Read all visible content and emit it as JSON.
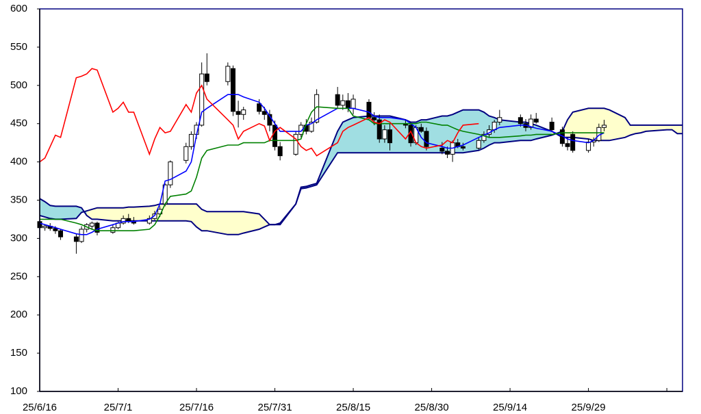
{
  "chart_data": {
    "type": "candlestick",
    "x": [
      "25/6/16",
      "25/6/17",
      "25/6/18",
      "25/6/19",
      "25/6/20",
      "25/6/23",
      "25/6/24",
      "25/6/25",
      "25/6/26",
      "25/6/27",
      "25/6/30",
      "25/7/1",
      "25/7/2",
      "25/7/3",
      "25/7/4",
      "25/7/7",
      "25/7/8",
      "25/7/9",
      "25/7/10",
      "25/7/11",
      "25/7/14",
      "25/7/15",
      "25/7/16",
      "25/7/17",
      "25/7/18",
      "25/7/22",
      "25/7/23",
      "25/7/24",
      "25/7/25",
      "25/7/28",
      "25/7/29",
      "25/7/30",
      "25/7/31",
      "25/8/1",
      "25/8/4",
      "25/8/5",
      "25/8/6",
      "25/8/7",
      "25/8/8",
      "25/8/12",
      "25/8/13",
      "25/8/14",
      "25/8/15",
      "25/8/18",
      "25/8/19",
      "25/8/20",
      "25/8/21",
      "25/8/22",
      "25/8/25",
      "25/8/26",
      "25/8/27",
      "25/8/28",
      "25/8/29",
      "25/9/1",
      "25/9/2",
      "25/9/3",
      "25/9/4",
      "25/9/5",
      "25/9/8",
      "25/9/9",
      "25/9/10",
      "25/9/11",
      "25/9/12",
      "25/9/16",
      "25/9/17",
      "25/9/18",
      "25/9/19",
      "25/9/22",
      "25/9/24",
      "25/9/25",
      "25/9/26",
      "25/9/29",
      "25/9/30",
      "25/10/1",
      "25/10/2",
      "25/10/3",
      "25/10/6",
      "25/10/7",
      "25/10/8",
      "25/10/9",
      "25/10/10",
      "25/10/14",
      "25/10/15",
      "25/10/16",
      "25/10/17"
    ],
    "open": [
      322,
      314,
      316,
      313,
      310,
      302,
      296,
      312,
      316,
      320,
      308,
      314,
      320,
      326,
      322,
      320,
      326,
      332,
      345,
      370,
      402,
      420,
      436,
      448,
      515,
      505,
      522,
      466,
      462,
      476,
      466,
      462,
      448,
      420,
      410,
      436,
      448,
      440,
      452,
      488,
      474,
      480,
      470,
      478,
      458,
      455,
      430,
      442,
      450,
      448,
      425,
      445,
      440,
      418,
      414,
      410,
      425,
      420,
      418,
      428,
      436,
      442,
      452,
      458,
      450,
      445,
      456,
      452,
      442,
      424,
      436,
      415,
      426,
      428,
      445,
      null,
      null,
      null,
      null,
      null,
      null,
      null,
      null,
      null,
      null
    ],
    "high": [
      326,
      318,
      320,
      316,
      312,
      306,
      316,
      320,
      322,
      322,
      318,
      322,
      330,
      332,
      328,
      330,
      336,
      342,
      372,
      402,
      425,
      440,
      452,
      530,
      542,
      530,
      526,
      480,
      472,
      482,
      472,
      468,
      454,
      426,
      440,
      452,
      456,
      458,
      495,
      498,
      488,
      490,
      488,
      482,
      465,
      462,
      448,
      450,
      456,
      452,
      448,
      450,
      445,
      426,
      420,
      428,
      430,
      425,
      432,
      440,
      448,
      455,
      468,
      462,
      456,
      462,
      464,
      458,
      446,
      432,
      440,
      430,
      432,
      450,
      455,
      null,
      null,
      null,
      null,
      null,
      null,
      null,
      null,
      null,
      null
    ],
    "low": [
      312,
      310,
      310,
      306,
      298,
      280,
      294,
      308,
      312,
      304,
      306,
      312,
      318,
      320,
      318,
      318,
      324,
      328,
      342,
      366,
      398,
      416,
      430,
      446,
      500,
      500,
      460,
      445,
      455,
      462,
      455,
      440,
      415,
      402,
      408,
      432,
      436,
      438,
      450,
      470,
      468,
      465,
      462,
      455,
      448,
      425,
      425,
      415,
      444,
      420,
      422,
      438,
      415,
      410,
      405,
      400,
      418,
      415,
      416,
      425,
      432,
      438,
      448,
      446,
      440,
      442,
      450,
      440,
      420,
      415,
      412,
      412,
      420,
      426,
      440,
      null,
      null,
      null,
      null,
      null,
      null,
      null,
      null,
      null,
      null
    ],
    "close": [
      314,
      316,
      313,
      310,
      302,
      296,
      312,
      318,
      320,
      308,
      314,
      320,
      326,
      322,
      320,
      326,
      332,
      338,
      370,
      400,
      420,
      436,
      448,
      515,
      505,
      525,
      466,
      462,
      468,
      466,
      462,
      448,
      420,
      408,
      436,
      448,
      440,
      452,
      488,
      474,
      480,
      470,
      482,
      458,
      455,
      430,
      442,
      425,
      448,
      425,
      445,
      440,
      420,
      414,
      410,
      425,
      420,
      418,
      428,
      436,
      442,
      452,
      458,
      450,
      445,
      456,
      452,
      442,
      424,
      420,
      415,
      426,
      428,
      445,
      448,
      null,
      null,
      null,
      null,
      null,
      null,
      null,
      null,
      null,
      null
    ],
    "candle_colors": {
      "up": "#ffffff",
      "down": "#000000",
      "outline": "#000000"
    },
    "series": [
      {
        "color": "#0000ff",
        "values": [
          320,
          318,
          316,
          314,
          312,
          306,
          305,
          305,
          308,
          312,
          318,
          320,
          322,
          322,
          322,
          325,
          330,
          345,
          375,
          377,
          388,
          400,
          435,
          465,
          470,
          488,
          488,
          488,
          485,
          478,
          470,
          460,
          450,
          440,
          440,
          440,
          448,
          450,
          455,
          470,
          470,
          470,
          470,
          465,
          460,
          458,
          458,
          458,
          455,
          450,
          445,
          432,
          425,
          420,
          418,
          418,
          420,
          422,
          432,
          435,
          438,
          442,
          445,
          448,
          448,
          446,
          444,
          440,
          434,
          430,
          428,
          425,
          428,
          435,
          438,
          null,
          null,
          null,
          null,
          null,
          null,
          null,
          null,
          null,
          null
        ]
      },
      {
        "color": "#008000",
        "values": [
          325,
          325,
          325,
          325,
          325,
          320,
          318,
          315,
          312,
          310,
          310,
          310,
          310,
          310,
          310,
          312,
          318,
          330,
          345,
          355,
          358,
          362,
          380,
          405,
          415,
          422,
          422,
          422,
          425,
          425,
          425,
          428,
          428,
          428,
          428,
          430,
          450,
          465,
          472,
          470,
          470,
          470,
          460,
          455,
          450,
          450,
          450,
          450,
          450,
          450,
          450,
          452,
          452,
          448,
          448,
          445,
          442,
          440,
          436,
          434,
          432,
          432,
          432,
          434,
          435,
          435,
          436,
          436,
          438,
          438,
          438,
          438,
          438,
          438,
          438,
          null,
          null,
          null,
          null,
          null,
          null,
          null,
          null,
          null,
          null
        ]
      },
      {
        "color": "#ff0000",
        "values": [
          400,
          405,
          420,
          435,
          432,
          510,
          512,
          515,
          522,
          520,
          465,
          470,
          478,
          465,
          465,
          410,
          430,
          445,
          438,
          440,
          475,
          465,
          490,
          500,
          482,
          455,
          448,
          430,
          440,
          450,
          447,
          428,
          440,
          445,
          430,
          420,
          415,
          418,
          408,
          425,
          440,
          445,
          448,
          458,
          452,
          450,
          455,
          452,
          430,
          440,
          425,
          420,
          418,
          422,
          428,
          425,
          438,
          448,
          450,
          null,
          null,
          null,
          null,
          null,
          null,
          null,
          null,
          null,
          null,
          null,
          null,
          null,
          null,
          null,
          null,
          null,
          null,
          null,
          null,
          null,
          null,
          null,
          null,
          null,
          null
        ]
      },
      {
        "color": "#000080",
        "values": [
          352,
          348,
          343,
          342,
          342,
          342,
          340,
          330,
          325,
          325,
          323,
          323,
          323,
          323,
          323,
          323,
          323,
          323,
          323,
          323,
          323,
          322,
          315,
          310,
          310,
          305,
          305,
          305,
          307,
          312,
          315,
          318,
          318,
          318,
          345,
          367,
          368,
          370,
          372,
          440,
          452,
          455,
          458,
          460,
          460,
          460,
          460,
          460,
          455,
          452,
          452,
          455,
          455,
          460,
          460,
          462,
          465,
          468,
          468,
          465,
          460,
          458,
          455,
          452,
          452,
          450,
          448,
          440,
          432,
          432,
          432,
          430,
          428,
          428,
          428,
          428,
          432,
          435,
          437,
          438,
          440,
          442,
          442,
          437,
          437
        ]
      },
      {
        "color": "#000080",
        "values": [
          330,
          328,
          326,
          325,
          325,
          326,
          334,
          336,
          338,
          340,
          340,
          340,
          340,
          341,
          341,
          342,
          343,
          345,
          345,
          345,
          345,
          345,
          345,
          338,
          335,
          335,
          335,
          335,
          335,
          332,
          325,
          318,
          318,
          320,
          345,
          365,
          366,
          368,
          370,
          412,
          412,
          412,
          412,
          412,
          412,
          412,
          412,
          412,
          412,
          412,
          412,
          412,
          412,
          412,
          412,
          412,
          412,
          412,
          415,
          418,
          422,
          425,
          425,
          428,
          428,
          428,
          430,
          435,
          440,
          455,
          465,
          470,
          470,
          470,
          470,
          468,
          458,
          448,
          448,
          448,
          448,
          448,
          448,
          448,
          448
        ]
      }
    ],
    "cloud": {
      "between": [
        3,
        4
      ],
      "colors": [
        "#a0dee2",
        "#ffffcc"
      ]
    },
    "xlim": [
      "25/6/16",
      "25/10/17"
    ],
    "xticks": [
      {
        "value": "25/6/16",
        "label": "25/6/16"
      },
      {
        "value": "25/7/1",
        "label": "25/7/1"
      },
      {
        "value": "25/7/16",
        "label": "25/7/16"
      },
      {
        "value": "25/7/31",
        "label": "25/7/31"
      },
      {
        "value": "25/8/15",
        "label": "25/8/15"
      },
      {
        "value": "25/8/30",
        "label": "25/8/30"
      },
      {
        "value": "25/9/14",
        "label": "25/9/14"
      },
      {
        "value": "25/9/29",
        "label": "25/9/29"
      },
      {
        "value": "25/10/14",
        "label": null
      }
    ],
    "ylim": [
      100,
      600
    ],
    "yticks": [
      100,
      150,
      200,
      250,
      300,
      350,
      400,
      450,
      500,
      550,
      600
    ],
    "grid": false,
    "frame_color": "#000080"
  }
}
